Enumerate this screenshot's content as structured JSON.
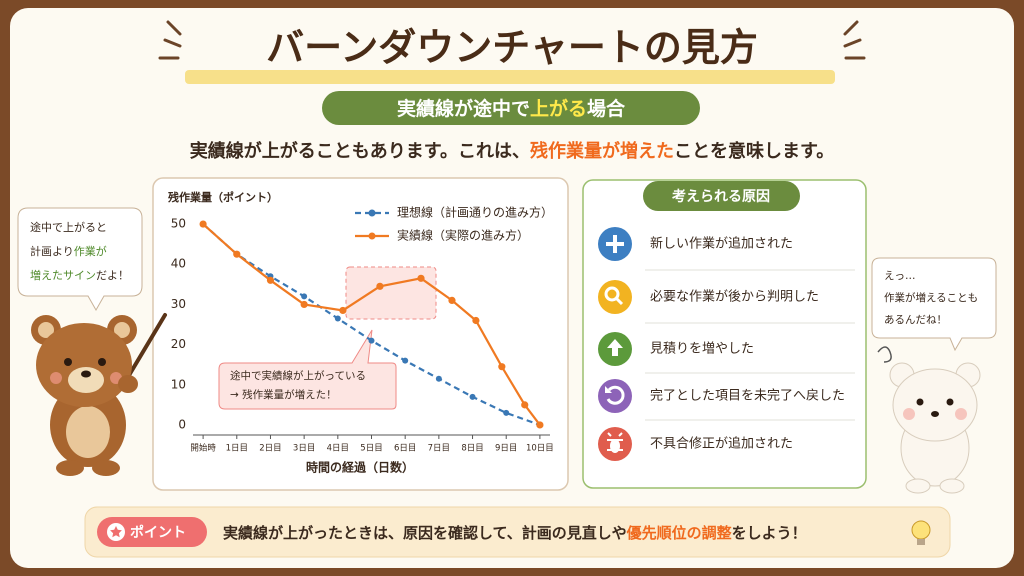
{
  "title": "バーンダウンチャートの見方",
  "subtitle": [
    "実績線が途中で",
    "上がる",
    "場合"
  ],
  "lead": [
    "実績線が上がることもあります。これは、",
    "残作業量が増えた",
    "ことを意味します。"
  ],
  "chart_data": {
    "type": "line",
    "y_label": "残作業量（ポイント）",
    "x_label": "時間の経過（日数）",
    "xlim": [
      -0.3,
      10.3
    ],
    "ylim": [
      -2.5,
      53
    ],
    "xticks": [
      {
        "value": 0,
        "label": "開始時"
      },
      {
        "value": 1,
        "label": "1日目"
      },
      {
        "value": 2,
        "label": "2日目"
      },
      {
        "value": 3,
        "label": "3日目"
      },
      {
        "value": 4,
        "label": "4日目"
      },
      {
        "value": 5,
        "label": "5日目"
      },
      {
        "value": 6,
        "label": "6日目"
      },
      {
        "value": 7,
        "label": "7日目"
      },
      {
        "value": 8,
        "label": "8日目"
      },
      {
        "value": 9,
        "label": "9日目"
      },
      {
        "value": 10,
        "label": "10日目"
      }
    ],
    "yticks": [
      0,
      10,
      20,
      30,
      40,
      50
    ],
    "legend": "upper right",
    "series": [
      {
        "name": "理想線（計画通りの進み方）",
        "color": "#3a78b5",
        "line_style": "dashed",
        "x": [
          0,
          1,
          2,
          3,
          4,
          5,
          6,
          7,
          8,
          9,
          10
        ],
        "values": [
          50,
          42.5,
          37,
          32,
          26.5,
          21,
          16,
          11.5,
          7,
          3,
          0
        ]
      },
      {
        "name": "実績線（実際の進み方）",
        "color": "#f07a22",
        "line_style": "solid",
        "x": [
          0,
          1,
          2,
          3,
          4.15,
          5.25,
          6.47,
          7.39,
          8.1,
          8.87,
          9.55,
          10
        ],
        "values": [
          50,
          42.5,
          36,
          30,
          28.5,
          34.5,
          36.5,
          31,
          26,
          14.5,
          5,
          0
        ]
      }
    ],
    "annotation": [
      "途中で実績線が上がっている",
      "→ 残作業量が増えた！"
    ]
  },
  "causes": {
    "title": "考えられる原因",
    "items": [
      "新しい作業が追加された",
      "必要な作業が後から判明した",
      "見積りを増やした",
      "完了とした項目を未完了へ戻した",
      "不具合修正が追加された"
    ]
  },
  "bear_left": {
    "lines": [
      [
        "途中で上がると"
      ],
      [
        "計画より",
        "作業が"
      ],
      [
        "増えたサイン",
        "だよ！"
      ]
    ]
  },
  "bear_right": {
    "lines": [
      "えっ…",
      "作業が増えることも",
      "あるんだね！"
    ]
  },
  "point": {
    "badge": "ポイント",
    "text": [
      "実績線が上がったときは、原因を確認して、計画の見直しや",
      "優先順位の調整",
      "をしよう！"
    ]
  }
}
